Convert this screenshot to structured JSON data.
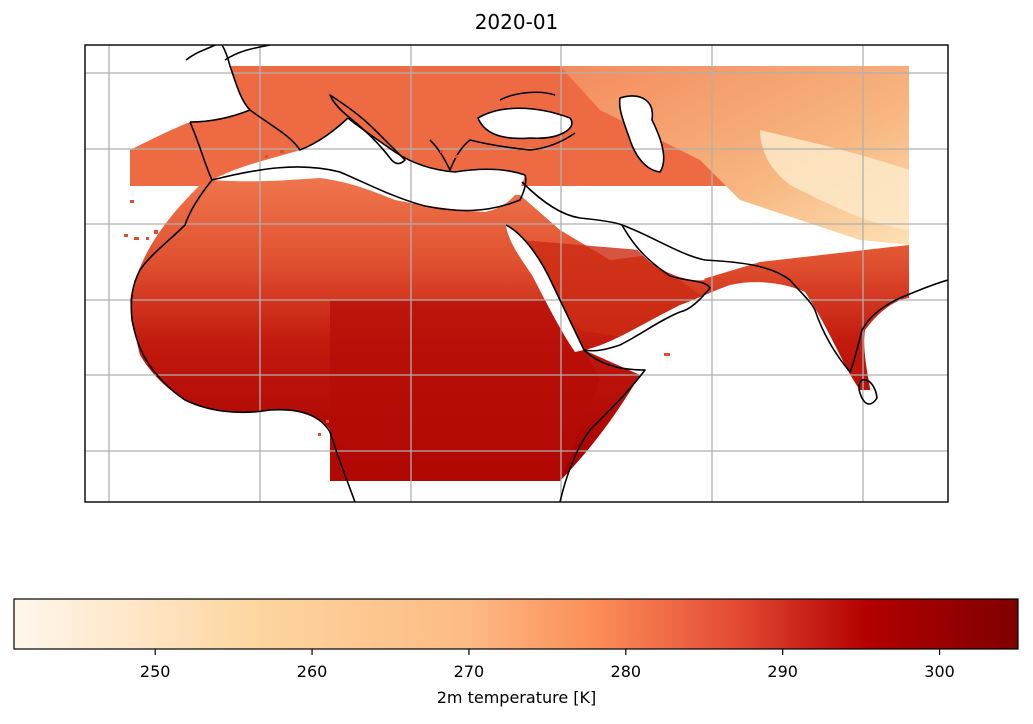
{
  "figure": {
    "title": "2020-01"
  },
  "map": {
    "extent_lon": [
      -20,
      95
    ],
    "extent_lat": [
      -10,
      50
    ],
    "gridlines": true,
    "gridline_lons": [
      -17,
      3,
      23,
      43,
      63,
      83
    ],
    "gridline_lats": [
      -7,
      3,
      13,
      23,
      33,
      43
    ],
    "data_extent_lon": [
      -17,
      92
    ],
    "data_extent_lat": [
      -7,
      47
    ],
    "features": [
      "coastline",
      "land-temperature-field"
    ]
  },
  "colorbar": {
    "label": "2m temperature [K]",
    "colormap": "OrRd",
    "range": [
      241,
      305
    ],
    "ticks": [
      250,
      260,
      270,
      280,
      290,
      300
    ],
    "tick_labels": [
      "250",
      "260",
      "270",
      "280",
      "290",
      "300"
    ],
    "colors": [
      "#fff7ec",
      "#fdd49e",
      "#fc8d59",
      "#e34a33",
      "#b30000",
      "#7f0000"
    ]
  }
}
